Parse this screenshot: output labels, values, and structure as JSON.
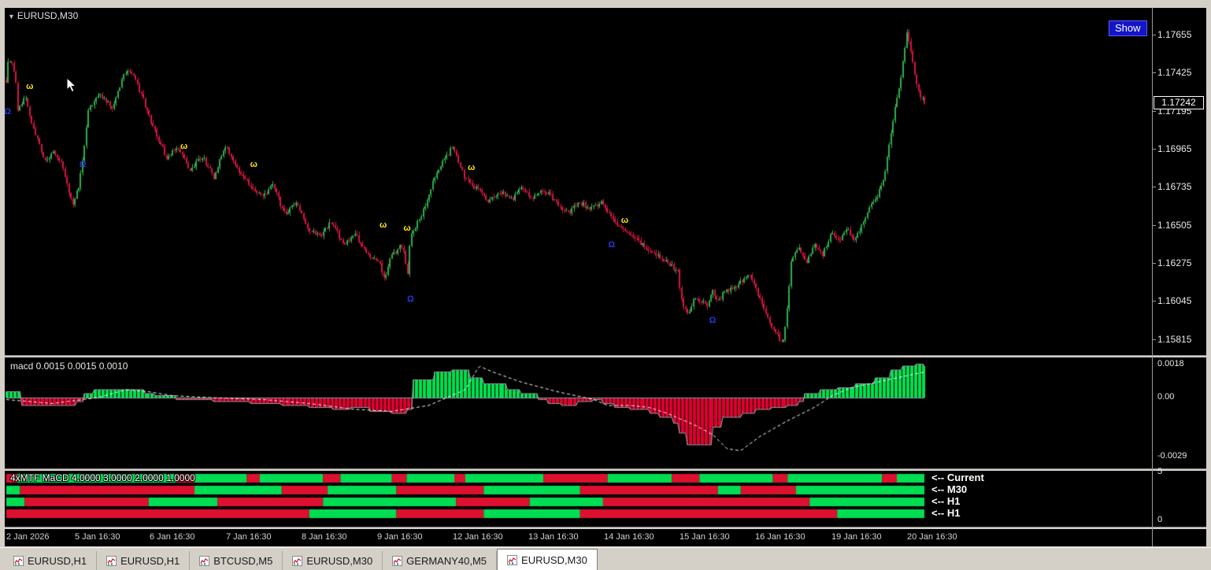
{
  "chart": {
    "symbol_label": "EURUSD,M30",
    "show_button": "Show",
    "price_axis": [
      "1.17655",
      "1.17425",
      "1.17195",
      "1.16965",
      "1.16735",
      "1.16505",
      "1.16275",
      "1.16045",
      "1.15815"
    ],
    "current_price": "1.17242",
    "time_axis": [
      "2 Jan 2026",
      "5 Jan 16:30",
      "6 Jan 16:30",
      "7 Jan 16:30",
      "8 Jan 16:30",
      "9 Jan 16:30",
      "12 Jan 16:30",
      "13 Jan 16:30",
      "14 Jan 16:30",
      "15 Jan 16:30",
      "16 Jan 16:30",
      "19 Jan 16:30",
      "20 Jan 16:30"
    ]
  },
  "macd": {
    "label": "macd  0.0015 0.0015 0.0010",
    "axis_top": "0.0018",
    "axis_zero": "0.00",
    "axis_bottom": "-0.0029"
  },
  "mtf": {
    "label": "4xMTF MaCD  4.0000 3.0000 2.0000 1.0000",
    "row_labels": [
      "<-- Current",
      "<-- M30",
      "<-- H1",
      "<-- H1"
    ],
    "axis_top": "5",
    "axis_bottom": "0"
  },
  "tabs": [
    {
      "label": "EURUSD,H1"
    },
    {
      "label": "EURUSD,H1"
    },
    {
      "label": "BTCUSD,M5"
    },
    {
      "label": "EURUSD,M30"
    },
    {
      "label": "GERMANY40,M5"
    },
    {
      "label": "EURUSD,M30",
      "active": true
    }
  ],
  "chart_data": {
    "type": "candlestick",
    "symbol": "EURUSD",
    "timeframe": "M30",
    "price_range": [
      1.1571,
      1.1782
    ],
    "current_price": 1.17242,
    "colors": {
      "up": "#2fae4a",
      "down": "#d61543",
      "macd_up": "#00e050",
      "macd_down": "#e00030",
      "mtf_up": "#00dd52",
      "mtf_down": "#dd1030",
      "signal": "#ffffff",
      "outline": "#9a9a9a"
    },
    "price_path": [
      [
        0.0,
        1.1738
      ],
      [
        0.003,
        1.1752
      ],
      [
        0.01,
        1.1742
      ],
      [
        0.013,
        1.1718
      ],
      [
        0.02,
        1.173
      ],
      [
        0.028,
        1.1712
      ],
      [
        0.034,
        1.1703
      ],
      [
        0.042,
        1.1688
      ],
      [
        0.05,
        1.1694
      ],
      [
        0.06,
        1.1689
      ],
      [
        0.072,
        1.1662
      ],
      [
        0.08,
        1.1676
      ],
      [
        0.09,
        1.1721
      ],
      [
        0.102,
        1.1729
      ],
      [
        0.115,
        1.1722
      ],
      [
        0.128,
        1.1741
      ],
      [
        0.136,
        1.1744
      ],
      [
        0.149,
        1.1726
      ],
      [
        0.162,
        1.1707
      ],
      [
        0.175,
        1.1691
      ],
      [
        0.187,
        1.1698
      ],
      [
        0.2,
        1.1683
      ],
      [
        0.213,
        1.1692
      ],
      [
        0.226,
        1.1679
      ],
      [
        0.239,
        1.1699
      ],
      [
        0.252,
        1.1683
      ],
      [
        0.264,
        1.1676
      ],
      [
        0.277,
        1.1667
      ],
      [
        0.29,
        1.1674
      ],
      [
        0.303,
        1.1657
      ],
      [
        0.316,
        1.1663
      ],
      [
        0.329,
        1.1648
      ],
      [
        0.341,
        1.1643
      ],
      [
        0.354,
        1.1652
      ],
      [
        0.367,
        1.1638
      ],
      [
        0.38,
        1.1644
      ],
      [
        0.393,
        1.1633
      ],
      [
        0.406,
        1.1628
      ],
      [
        0.412,
        1.1616
      ],
      [
        0.418,
        1.163
      ],
      [
        0.431,
        1.1638
      ],
      [
        0.437,
        1.162
      ],
      [
        0.44,
        1.1643
      ],
      [
        0.453,
        1.1657
      ],
      [
        0.465,
        1.1676
      ],
      [
        0.478,
        1.1691
      ],
      [
        0.487,
        1.1698
      ],
      [
        0.5,
        1.1678
      ],
      [
        0.512,
        1.1672
      ],
      [
        0.525,
        1.1665
      ],
      [
        0.538,
        1.1671
      ],
      [
        0.551,
        1.1665
      ],
      [
        0.56,
        1.1674
      ],
      [
        0.572,
        1.1667
      ],
      [
        0.585,
        1.1671
      ],
      [
        0.598,
        1.1665
      ],
      [
        0.611,
        1.1657
      ],
      [
        0.624,
        1.1664
      ],
      [
        0.636,
        1.166
      ],
      [
        0.649,
        1.1664
      ],
      [
        0.658,
        1.1655
      ],
      [
        0.668,
        1.1648
      ],
      [
        0.681,
        1.1643
      ],
      [
        0.694,
        1.1638
      ],
      [
        0.706,
        1.1633
      ],
      [
        0.719,
        1.1628
      ],
      [
        0.732,
        1.1621
      ],
      [
        0.735,
        1.1605
      ],
      [
        0.742,
        1.1595
      ],
      [
        0.75,
        1.1607
      ],
      [
        0.763,
        1.1601
      ],
      [
        0.77,
        1.161
      ],
      [
        0.776,
        1.1604
      ],
      [
        0.782,
        1.161
      ],
      [
        0.795,
        1.1612
      ],
      [
        0.808,
        1.1621
      ],
      [
        0.816,
        1.1612
      ],
      [
        0.825,
        1.1598
      ],
      [
        0.838,
        1.1585
      ],
      [
        0.846,
        1.1577
      ],
      [
        0.851,
        1.16
      ],
      [
        0.855,
        1.1628
      ],
      [
        0.863,
        1.1636
      ],
      [
        0.872,
        1.1626
      ],
      [
        0.88,
        1.164
      ],
      [
        0.889,
        1.1632
      ],
      [
        0.898,
        1.1645
      ],
      [
        0.906,
        1.164
      ],
      [
        0.915,
        1.1648
      ],
      [
        0.923,
        1.1641
      ],
      [
        0.932,
        1.165
      ],
      [
        0.94,
        1.166
      ],
      [
        0.949,
        1.1667
      ],
      [
        0.957,
        1.1681
      ],
      [
        0.966,
        1.1715
      ],
      [
        0.974,
        1.1739
      ],
      [
        0.981,
        1.1768
      ],
      [
        0.985,
        1.1755
      ],
      [
        0.989,
        1.1743
      ],
      [
        0.994,
        1.1731
      ],
      [
        1.0,
        1.17242
      ]
    ],
    "markers": [
      {
        "type": "warn",
        "x": 0.025,
        "price": 1.1734
      },
      {
        "type": "warn",
        "x": 0.193,
        "price": 1.1698
      },
      {
        "type": "warn",
        "x": 0.269,
        "price": 1.1687
      },
      {
        "type": "warn",
        "x": 0.41,
        "price": 1.165
      },
      {
        "type": "warn",
        "x": 0.436,
        "price": 1.1648
      },
      {
        "type": "warn",
        "x": 0.506,
        "price": 1.1685
      },
      {
        "type": "warn",
        "x": 0.673,
        "price": 1.1653
      },
      {
        "type": "omega",
        "x": 0.001,
        "price": 1.1719
      },
      {
        "type": "omega",
        "x": 0.083,
        "price": 1.1687
      },
      {
        "type": "omega",
        "x": 0.44,
        "price": 1.1605
      },
      {
        "type": "omega",
        "x": 0.659,
        "price": 1.1638
      },
      {
        "type": "omega",
        "x": 0.769,
        "price": 1.1592
      }
    ],
    "macd": {
      "values_label": [
        0.0015,
        0.0015,
        0.001
      ],
      "range": [
        -0.0029,
        0.0018
      ],
      "histogram": [
        [
          0.0,
          0.0003
        ],
        [
          0.015,
          -0.0004
        ],
        [
          0.055,
          -0.0004
        ],
        [
          0.075,
          -0.0002
        ],
        [
          0.085,
          0.0002
        ],
        [
          0.095,
          0.0004
        ],
        [
          0.13,
          0.0004
        ],
        [
          0.15,
          0.0002
        ],
        [
          0.16,
          0.0001
        ],
        [
          0.185,
          -0.0001
        ],
        [
          0.225,
          -0.0002
        ],
        [
          0.265,
          -0.0003
        ],
        [
          0.3,
          -0.0004
        ],
        [
          0.33,
          -0.0005
        ],
        [
          0.355,
          -0.0006
        ],
        [
          0.375,
          -0.0005
        ],
        [
          0.395,
          -0.0007
        ],
        [
          0.42,
          -0.0008
        ],
        [
          0.436,
          -0.0006
        ],
        [
          0.442,
          0.0009
        ],
        [
          0.465,
          0.0013
        ],
        [
          0.485,
          0.0014
        ],
        [
          0.505,
          0.001
        ],
        [
          0.52,
          0.0007
        ],
        [
          0.545,
          0.0004
        ],
        [
          0.56,
          0.0002
        ],
        [
          0.578,
          -0.0001
        ],
        [
          0.59,
          -0.0003
        ],
        [
          0.605,
          -0.0004
        ],
        [
          0.622,
          -0.0002
        ],
        [
          0.638,
          -0.0001
        ],
        [
          0.65,
          -0.0003
        ],
        [
          0.662,
          -0.0005
        ],
        [
          0.68,
          -0.0006
        ],
        [
          0.7,
          -0.0008
        ],
        [
          0.712,
          -0.001
        ],
        [
          0.726,
          -0.0013
        ],
        [
          0.733,
          -0.0018
        ],
        [
          0.74,
          -0.0024
        ],
        [
          0.758,
          -0.0024
        ],
        [
          0.768,
          -0.0015
        ],
        [
          0.78,
          -0.001
        ],
        [
          0.8,
          -0.0008
        ],
        [
          0.815,
          -0.0006
        ],
        [
          0.832,
          -0.0005
        ],
        [
          0.85,
          -0.0004
        ],
        [
          0.862,
          -0.0002
        ],
        [
          0.868,
          0.0002
        ],
        [
          0.885,
          0.0004
        ],
        [
          0.905,
          0.0005
        ],
        [
          0.925,
          0.0007
        ],
        [
          0.945,
          0.001
        ],
        [
          0.962,
          0.0014
        ],
        [
          0.975,
          0.0016
        ],
        [
          0.99,
          0.0017
        ],
        [
          1.0,
          0.0016
        ]
      ],
      "signal": [
        [
          0.0,
          -0.0001
        ],
        [
          0.05,
          -0.0003
        ],
        [
          0.1,
          0.0
        ],
        [
          0.13,
          0.0004
        ],
        [
          0.155,
          0.0003
        ],
        [
          0.18,
          0.0001
        ],
        [
          0.22,
          0.0
        ],
        [
          0.28,
          -0.0001
        ],
        [
          0.33,
          -0.0003
        ],
        [
          0.38,
          -0.0006
        ],
        [
          0.42,
          -0.0007
        ],
        [
          0.46,
          -0.0004
        ],
        [
          0.5,
          0.0004
        ],
        [
          0.515,
          0.0016
        ],
        [
          0.53,
          0.0013
        ],
        [
          0.56,
          0.0008
        ],
        [
          0.6,
          0.0003
        ],
        [
          0.64,
          -0.0001
        ],
        [
          0.655,
          -0.0004
        ],
        [
          0.68,
          -0.0004
        ],
        [
          0.7,
          -0.0005
        ],
        [
          0.72,
          -0.0008
        ],
        [
          0.75,
          -0.0014
        ],
        [
          0.77,
          -0.0019
        ],
        [
          0.785,
          -0.0026
        ],
        [
          0.8,
          -0.0027
        ],
        [
          0.82,
          -0.002
        ],
        [
          0.85,
          -0.0012
        ],
        [
          0.88,
          -0.0005
        ],
        [
          0.9,
          0.0001
        ],
        [
          0.92,
          0.0005
        ],
        [
          0.95,
          0.0008
        ],
        [
          0.97,
          0.001
        ],
        [
          1.0,
          0.0013
        ]
      ]
    },
    "mtf_rows": [
      [
        [
          0,
          0.012,
          "r"
        ],
        [
          0.012,
          0.185,
          "g"
        ],
        [
          0.185,
          0.205,
          "r"
        ],
        [
          0.205,
          0.262,
          "g"
        ],
        [
          0.262,
          0.276,
          "r"
        ],
        [
          0.276,
          0.345,
          "g"
        ],
        [
          0.345,
          0.364,
          "r"
        ],
        [
          0.364,
          0.42,
          "g"
        ],
        [
          0.42,
          0.436,
          "r"
        ],
        [
          0.436,
          0.488,
          "g"
        ],
        [
          0.488,
          0.5,
          "r"
        ],
        [
          0.5,
          0.585,
          "g"
        ],
        [
          0.585,
          0.655,
          "r"
        ],
        [
          0.655,
          0.725,
          "g"
        ],
        [
          0.725,
          0.755,
          "r"
        ],
        [
          0.755,
          0.835,
          "g"
        ],
        [
          0.835,
          0.851,
          "r"
        ],
        [
          0.851,
          0.954,
          "g"
        ],
        [
          0.954,
          0.97,
          "r"
        ],
        [
          0.97,
          1,
          "g"
        ]
      ],
      [
        [
          0,
          0.015,
          "g"
        ],
        [
          0.015,
          0.205,
          "r"
        ],
        [
          0.205,
          0.3,
          "g"
        ],
        [
          0.3,
          0.35,
          "r"
        ],
        [
          0.35,
          0.425,
          "g"
        ],
        [
          0.425,
          0.52,
          "r"
        ],
        [
          0.52,
          0.625,
          "g"
        ],
        [
          0.625,
          0.775,
          "r"
        ],
        [
          0.775,
          0.8,
          "g"
        ],
        [
          0.8,
          0.86,
          "r"
        ],
        [
          0.86,
          1,
          "g"
        ]
      ],
      [
        [
          0,
          0.02,
          "g"
        ],
        [
          0.02,
          0.155,
          "r"
        ],
        [
          0.155,
          0.23,
          "g"
        ],
        [
          0.23,
          0.345,
          "r"
        ],
        [
          0.345,
          0.49,
          "g"
        ],
        [
          0.49,
          0.57,
          "r"
        ],
        [
          0.57,
          0.65,
          "g"
        ],
        [
          0.65,
          0.875,
          "r"
        ],
        [
          0.875,
          1,
          "g"
        ]
      ],
      [
        [
          0,
          0.33,
          "r"
        ],
        [
          0.33,
          0.425,
          "g"
        ],
        [
          0.425,
          0.52,
          "r"
        ],
        [
          0.52,
          0.625,
          "g"
        ],
        [
          0.625,
          0.905,
          "r"
        ],
        [
          0.905,
          1,
          "g"
        ]
      ]
    ]
  }
}
